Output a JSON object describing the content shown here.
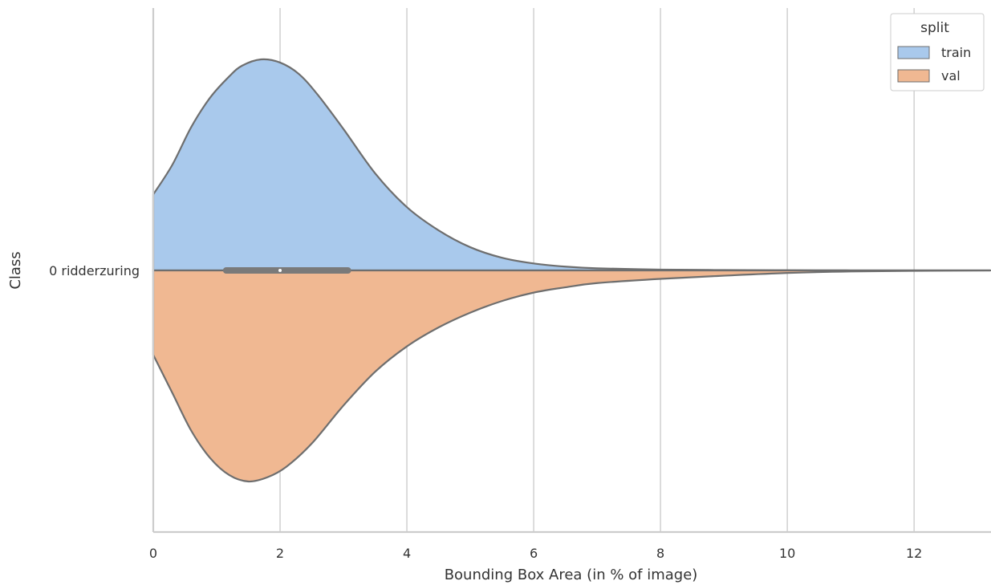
{
  "chart_data": {
    "type": "violin",
    "split": true,
    "orientation": "horizontal",
    "xlabel": "Bounding Box Area (in % of image)",
    "ylabel": "Class",
    "xlim": [
      0,
      13.2
    ],
    "x_ticks": [
      0,
      2,
      4,
      6,
      8,
      10,
      12
    ],
    "categories": [
      "0 ridderzuring"
    ],
    "grid": "vertical",
    "legend": {
      "title": "split",
      "position": "top-right",
      "entries": [
        {
          "label": "train",
          "color": "#a9c9ec"
        },
        {
          "label": "val",
          "color": "#f0b892"
        }
      ]
    },
    "series": [
      {
        "name": "train",
        "color": "#a9c9ec",
        "side": "upper",
        "x": [
          0,
          0.3,
          0.6,
          0.9,
          1.2,
          1.4,
          1.7,
          2.0,
          2.3,
          2.6,
          3.0,
          3.5,
          4.0,
          4.5,
          5.0,
          5.5,
          6.0,
          6.5,
          7.0,
          8.0,
          9.0,
          10.0,
          11.0,
          12.0,
          13.2
        ],
        "density": [
          0.36,
          0.5,
          0.68,
          0.82,
          0.92,
          0.97,
          1.0,
          0.985,
          0.93,
          0.83,
          0.67,
          0.46,
          0.3,
          0.19,
          0.11,
          0.06,
          0.033,
          0.018,
          0.01,
          0.004,
          0.002,
          0.001,
          0.0003,
          0.0001,
          0.0
        ]
      },
      {
        "name": "val",
        "color": "#f0b892",
        "side": "lower",
        "x": [
          0,
          0.3,
          0.6,
          0.9,
          1.2,
          1.5,
          1.8,
          2.1,
          2.5,
          3.0,
          3.5,
          4.0,
          4.5,
          5.0,
          5.5,
          6.0,
          6.5,
          7.0,
          8.0,
          9.0,
          10.0,
          11.0,
          12.0,
          13.2
        ],
        "density": [
          0.4,
          0.58,
          0.76,
          0.89,
          0.97,
          1.0,
          0.98,
          0.93,
          0.82,
          0.64,
          0.48,
          0.36,
          0.27,
          0.2,
          0.145,
          0.105,
          0.08,
          0.06,
          0.04,
          0.025,
          0.012,
          0.005,
          0.002,
          0.0
        ]
      }
    ],
    "box": {
      "q1": 1.15,
      "median": 2.0,
      "q3": 3.07,
      "color": "#7a7a7a",
      "median_color": "#ffffff"
    }
  }
}
